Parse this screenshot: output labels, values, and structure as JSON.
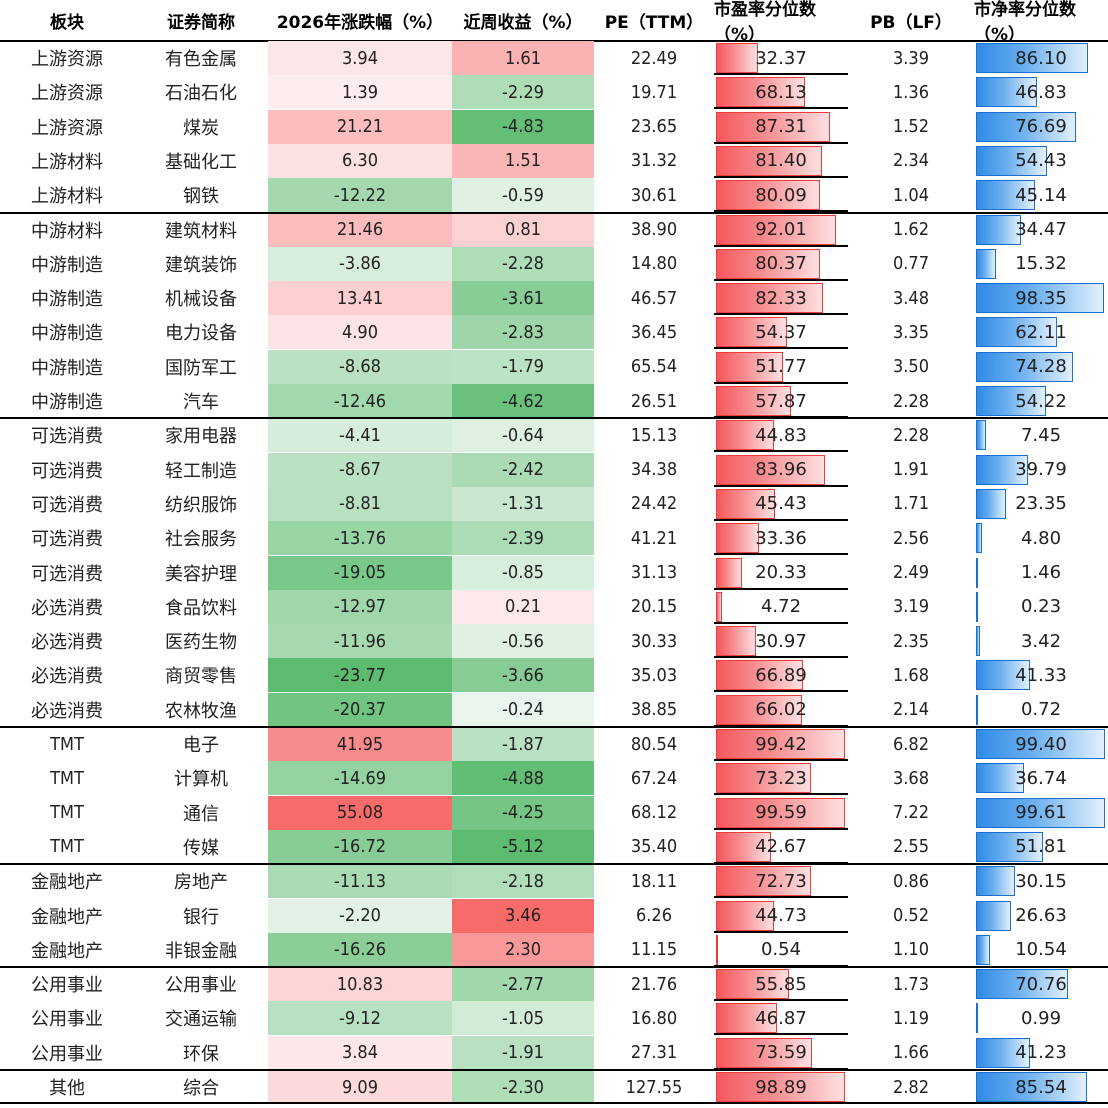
{
  "headers": {
    "sector": "板块",
    "name": "证券简称",
    "ytd": "2026年涨跌幅（%）",
    "week": "近周收益（%）",
    "pe": "PE（TTM）",
    "pe_pct": "市盈率分位数（%）",
    "pb": "PB（LF）",
    "pb_pct": "市净率分位数（%）"
  },
  "colors": {
    "positive_strong": "#f76b6b",
    "negative_strong": "#5cbb6f",
    "pe_bar": "#f4585c",
    "pb_bar": "#2f8be6",
    "rule": "#000000"
  },
  "chart_data": {
    "type": "table",
    "columns": [
      "板块",
      "证券简称",
      "2026年涨跌幅（%）",
      "近周收益（%）",
      "PE（TTM）",
      "市盈率分位数（%）",
      "PB（LF）",
      "市净率分位数（%）"
    ],
    "rows": [
      {
        "sector": "上游资源",
        "name": "有色金属",
        "ytd": "3.94",
        "week": "1.61",
        "pe": "22.49",
        "pe_pct": "32.37",
        "pb": "3.39",
        "pb_pct": "86.10"
      },
      {
        "sector": "上游资源",
        "name": "石油石化",
        "ytd": "1.39",
        "week": "-2.29",
        "pe": "19.71",
        "pe_pct": "68.13",
        "pb": "1.36",
        "pb_pct": "46.83"
      },
      {
        "sector": "上游资源",
        "name": "煤炭",
        "ytd": "21.21",
        "week": "-4.83",
        "pe": "23.65",
        "pe_pct": "87.31",
        "pb": "1.52",
        "pb_pct": "76.69"
      },
      {
        "sector": "上游材料",
        "name": "基础化工",
        "ytd": "6.30",
        "week": "1.51",
        "pe": "31.32",
        "pe_pct": "81.40",
        "pb": "2.34",
        "pb_pct": "54.43"
      },
      {
        "sector": "上游材料",
        "name": "钢铁",
        "ytd": "-12.22",
        "week": "-0.59",
        "pe": "30.61",
        "pe_pct": "80.09",
        "pb": "1.04",
        "pb_pct": "45.14"
      },
      {
        "sector": "中游材料",
        "name": "建筑材料",
        "ytd": "21.46",
        "week": "0.81",
        "pe": "38.90",
        "pe_pct": "92.01",
        "pb": "1.62",
        "pb_pct": "34.47"
      },
      {
        "sector": "中游制造",
        "name": "建筑装饰",
        "ytd": "-3.86",
        "week": "-2.28",
        "pe": "14.80",
        "pe_pct": "80.37",
        "pb": "0.77",
        "pb_pct": "15.32"
      },
      {
        "sector": "中游制造",
        "name": "机械设备",
        "ytd": "13.41",
        "week": "-3.61",
        "pe": "46.57",
        "pe_pct": "82.33",
        "pb": "3.48",
        "pb_pct": "98.35"
      },
      {
        "sector": "中游制造",
        "name": "电力设备",
        "ytd": "4.90",
        "week": "-2.83",
        "pe": "36.45",
        "pe_pct": "54.37",
        "pb": "3.35",
        "pb_pct": "62.11"
      },
      {
        "sector": "中游制造",
        "name": "国防军工",
        "ytd": "-8.68",
        "week": "-1.79",
        "pe": "65.54",
        "pe_pct": "51.77",
        "pb": "3.50",
        "pb_pct": "74.28"
      },
      {
        "sector": "中游制造",
        "name": "汽车",
        "ytd": "-12.46",
        "week": "-4.62",
        "pe": "26.51",
        "pe_pct": "57.87",
        "pb": "2.28",
        "pb_pct": "54.22"
      },
      {
        "sector": "可选消费",
        "name": "家用电器",
        "ytd": "-4.41",
        "week": "-0.64",
        "pe": "15.13",
        "pe_pct": "44.83",
        "pb": "2.28",
        "pb_pct": "7.45"
      },
      {
        "sector": "可选消费",
        "name": "轻工制造",
        "ytd": "-8.67",
        "week": "-2.42",
        "pe": "34.38",
        "pe_pct": "83.96",
        "pb": "1.91",
        "pb_pct": "39.79"
      },
      {
        "sector": "可选消费",
        "name": "纺织服饰",
        "ytd": "-8.81",
        "week": "-1.31",
        "pe": "24.42",
        "pe_pct": "45.43",
        "pb": "1.71",
        "pb_pct": "23.35"
      },
      {
        "sector": "可选消费",
        "name": "社会服务",
        "ytd": "-13.76",
        "week": "-2.39",
        "pe": "41.21",
        "pe_pct": "33.36",
        "pb": "2.56",
        "pb_pct": "4.80"
      },
      {
        "sector": "可选消费",
        "name": "美容护理",
        "ytd": "-19.05",
        "week": "-0.85",
        "pe": "31.13",
        "pe_pct": "20.33",
        "pb": "2.49",
        "pb_pct": "1.46"
      },
      {
        "sector": "必选消费",
        "name": "食品饮料",
        "ytd": "-12.97",
        "week": "0.21",
        "pe": "20.15",
        "pe_pct": "4.72",
        "pb": "3.19",
        "pb_pct": "0.23"
      },
      {
        "sector": "必选消费",
        "name": "医药生物",
        "ytd": "-11.96",
        "week": "-0.56",
        "pe": "30.33",
        "pe_pct": "30.97",
        "pb": "2.35",
        "pb_pct": "3.42"
      },
      {
        "sector": "必选消费",
        "name": "商贸零售",
        "ytd": "-23.77",
        "week": "-3.66",
        "pe": "35.03",
        "pe_pct": "66.89",
        "pb": "1.68",
        "pb_pct": "41.33"
      },
      {
        "sector": "必选消费",
        "name": "农林牧渔",
        "ytd": "-20.37",
        "week": "-0.24",
        "pe": "38.85",
        "pe_pct": "66.02",
        "pb": "2.14",
        "pb_pct": "0.72"
      },
      {
        "sector": "TMT",
        "name": "电子",
        "ytd": "41.95",
        "week": "-1.87",
        "pe": "80.54",
        "pe_pct": "99.42",
        "pb": "6.82",
        "pb_pct": "99.40"
      },
      {
        "sector": "TMT",
        "name": "计算机",
        "ytd": "-14.69",
        "week": "-4.88",
        "pe": "67.24",
        "pe_pct": "73.23",
        "pb": "3.68",
        "pb_pct": "36.74"
      },
      {
        "sector": "TMT",
        "name": "通信",
        "ytd": "55.08",
        "week": "-4.25",
        "pe": "68.12",
        "pe_pct": "99.59",
        "pb": "7.22",
        "pb_pct": "99.61"
      },
      {
        "sector": "TMT",
        "name": "传媒",
        "ytd": "-16.72",
        "week": "-5.12",
        "pe": "35.40",
        "pe_pct": "42.67",
        "pb": "2.55",
        "pb_pct": "51.81"
      },
      {
        "sector": "金融地产",
        "name": "房地产",
        "ytd": "-11.13",
        "week": "-2.18",
        "pe": "18.11",
        "pe_pct": "72.73",
        "pb": "0.86",
        "pb_pct": "30.15"
      },
      {
        "sector": "金融地产",
        "name": "银行",
        "ytd": "-2.20",
        "week": "3.46",
        "pe": "6.26",
        "pe_pct": "44.73",
        "pb": "0.52",
        "pb_pct": "26.63"
      },
      {
        "sector": "金融地产",
        "name": "非银金融",
        "ytd": "-16.26",
        "week": "2.30",
        "pe": "11.15",
        "pe_pct": "0.54",
        "pb": "1.10",
        "pb_pct": "10.54"
      },
      {
        "sector": "公用事业",
        "name": "公用事业",
        "ytd": "10.83",
        "week": "-2.77",
        "pe": "21.76",
        "pe_pct": "55.85",
        "pb": "1.73",
        "pb_pct": "70.76"
      },
      {
        "sector": "公用事业",
        "name": "交通运输",
        "ytd": "-9.12",
        "week": "-1.05",
        "pe": "16.80",
        "pe_pct": "46.87",
        "pb": "1.19",
        "pb_pct": "0.99"
      },
      {
        "sector": "公用事业",
        "name": "环保",
        "ytd": "3.84",
        "week": "-1.91",
        "pe": "27.31",
        "pe_pct": "73.59",
        "pb": "1.66",
        "pb_pct": "41.23"
      },
      {
        "sector": "其他",
        "name": "综合",
        "ytd": "9.09",
        "week": "-2.30",
        "pe": "127.55",
        "pe_pct": "98.89",
        "pb": "2.82",
        "pb_pct": "85.54"
      }
    ],
    "group_breaks_after": [
      4,
      10,
      19,
      23,
      26,
      29
    ],
    "ytd_range": [
      -23.77,
      55.08
    ],
    "week_range": [
      -5.12,
      3.46
    ],
    "percentile_scale": [
      0,
      100
    ]
  }
}
